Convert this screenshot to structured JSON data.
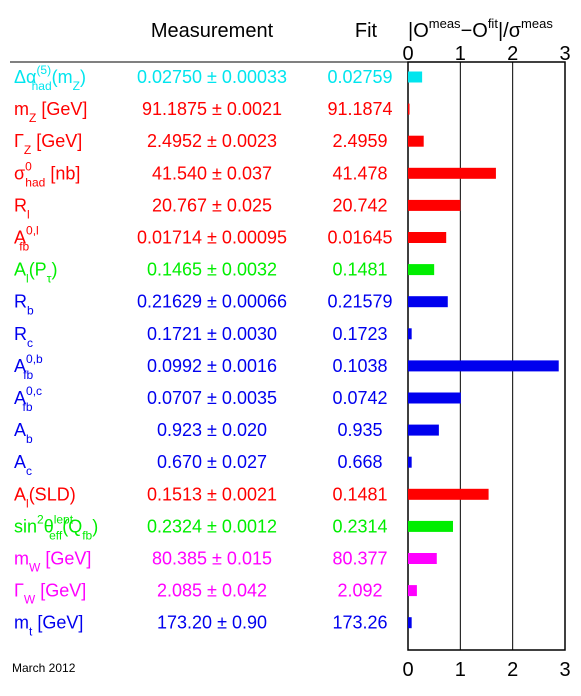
{
  "chart_data": {
    "type": "bar",
    "orientation": "horizontal",
    "headers": {
      "measurement": "Measurement",
      "fit": "Fit",
      "pull": {
        "o": "|O",
        "meas_sup": "meas",
        "dash": "−O",
        "fit_sup": "fit",
        "slash": "|/σ",
        "sigma_sup": "meas"
      }
    },
    "xlim": [
      0,
      3
    ],
    "tick_labels": [
      "0",
      "1",
      "2",
      "3"
    ],
    "grid_lines": [
      0,
      1,
      2,
      3
    ],
    "footer": "March 2012",
    "rows": [
      {
        "label": {
          "base": "Δα",
          "sup": "(5)",
          "sub": "had",
          "tail": "(m",
          "tail_sub": "Z",
          "tail_end": ")"
        },
        "measurement": "0.02750 ± 0.00033",
        "fit": "0.02759",
        "pull": 0.27,
        "color": "#00e5ee"
      },
      {
        "label": {
          "base": "m",
          "sub": "Z",
          "tail": " [GeV]"
        },
        "measurement": "91.1875 ± 0.0021",
        "fit": "91.1874",
        "pull": 0.02,
        "color": "#ff0000"
      },
      {
        "label": {
          "base": "Γ",
          "sub": "Z",
          "tail": " [GeV]"
        },
        "measurement": "2.4952 ± 0.0023",
        "fit": "2.4959",
        "pull": 0.3,
        "color": "#ff0000"
      },
      {
        "label": {
          "base": "σ",
          "sup": "0",
          "sub": "had",
          "tail": " [nb]"
        },
        "measurement": "41.540 ± 0.037",
        "fit": "41.478",
        "pull": 1.68,
        "color": "#ff0000"
      },
      {
        "label": {
          "base": "R",
          "sub": "l"
        },
        "measurement": "20.767 ± 0.025",
        "fit": "20.742",
        "pull": 1.0,
        "color": "#ff0000"
      },
      {
        "label": {
          "base": "A",
          "sup": "0,l",
          "sub": "fb"
        },
        "measurement": "0.01714 ± 0.00095",
        "fit": "0.01645",
        "pull": 0.73,
        "color": "#ff0000"
      },
      {
        "label": {
          "base": "A",
          "sub": "l",
          "tail": "(P",
          "tail_sub": "τ",
          "tail_end": ")"
        },
        "measurement": "0.1465 ± 0.0032",
        "fit": "0.1481",
        "pull": 0.5,
        "color": "#00ee00"
      },
      {
        "label": {
          "base": "R",
          "sub": "b"
        },
        "measurement": "0.21629 ± 0.00066",
        "fit": "0.21579",
        "pull": 0.76,
        "color": "#0000ee"
      },
      {
        "label": {
          "base": "R",
          "sub": "c"
        },
        "measurement": "0.1721 ± 0.0030",
        "fit": "0.1723",
        "pull": 0.07,
        "color": "#0000ee"
      },
      {
        "label": {
          "base": "A",
          "sup": "0,b",
          "sub": "fb"
        },
        "measurement": "0.0992 ± 0.0016",
        "fit": "0.1038",
        "pull": 2.88,
        "color": "#0000ee"
      },
      {
        "label": {
          "base": "A",
          "sup": "0,c",
          "sub": "fb"
        },
        "measurement": "0.0707 ± 0.0035",
        "fit": "0.0742",
        "pull": 1.01,
        "color": "#0000ee"
      },
      {
        "label": {
          "base": "A",
          "sub": "b"
        },
        "measurement": "0.923 ± 0.020",
        "fit": "0.935",
        "pull": 0.59,
        "color": "#0000ee"
      },
      {
        "label": {
          "base": "A",
          "sub": "c"
        },
        "measurement": "0.670 ± 0.027",
        "fit": "0.668",
        "pull": 0.07,
        "color": "#0000ee"
      },
      {
        "label": {
          "base": "A",
          "sub": "l",
          "tail": "(SLD)"
        },
        "measurement": "0.1513 ± 0.0021",
        "fit": "0.1481",
        "pull": 1.54,
        "color": "#ff0000"
      },
      {
        "label": {
          "base": "sin",
          "sup": "2",
          "tail": "θ",
          "tail_sup": "lept",
          "tail_sub": "eff",
          "tail_end": "(Q",
          "tail_end_sub": "fb",
          "tail_close": ")"
        },
        "measurement": "0.2324 ± 0.0012",
        "fit": "0.2314",
        "pull": 0.86,
        "color": "#00ee00"
      },
      {
        "label": {
          "base": "m",
          "sub": "W",
          "tail": " [GeV]"
        },
        "measurement": "80.385 ± 0.015",
        "fit": "80.377",
        "pull": 0.55,
        "color": "#ff00ff"
      },
      {
        "label": {
          "base": "Γ",
          "sub": "W",
          "tail": " [GeV]"
        },
        "measurement": "2.085 ± 0.042",
        "fit": "2.092",
        "pull": 0.17,
        "color": "#ff00ff"
      },
      {
        "label": {
          "base": "m",
          "sub": "t",
          "tail": " [GeV]"
        },
        "measurement": "173.20 ± 0.90",
        "fit": "173.26",
        "pull": 0.07,
        "color": "#0000ee"
      }
    ]
  }
}
